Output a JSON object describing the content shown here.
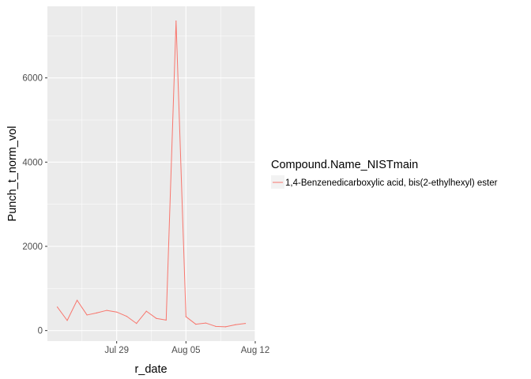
{
  "chart_data": {
    "type": "line",
    "xlabel": "r_date",
    "ylabel": "Punch_t_norm_vol",
    "legend_title": "Compound.Name_NISTmain",
    "legend_position": "right",
    "grid": true,
    "x_ticks": [
      "Jul 29",
      "Aug 05",
      "Aug 12"
    ],
    "y_ticks": [
      0,
      2000,
      4000,
      6000
    ],
    "xlim": [
      "2023-07-22",
      "2023-08-12"
    ],
    "ylim": [
      -250,
      7700
    ],
    "series": [
      {
        "name": "1,4-Benzenedicarboxylic acid, bis(2-ethylhexyl) ester",
        "color": "#F8766D",
        "x": [
          "2023-07-23",
          "2023-07-24",
          "2023-07-25",
          "2023-07-26",
          "2023-07-27",
          "2023-07-28",
          "2023-07-29",
          "2023-07-30",
          "2023-07-31",
          "2023-08-01",
          "2023-08-02",
          "2023-08-03",
          "2023-08-04",
          "2023-08-05",
          "2023-08-06",
          "2023-08-07",
          "2023-08-08",
          "2023-08-09",
          "2023-08-10",
          "2023-08-11"
        ],
        "y": [
          560,
          240,
          720,
          370,
          420,
          480,
          440,
          340,
          170,
          460,
          290,
          250,
          7350,
          330,
          150,
          180,
          100,
          90,
          140,
          170
        ]
      }
    ]
  }
}
